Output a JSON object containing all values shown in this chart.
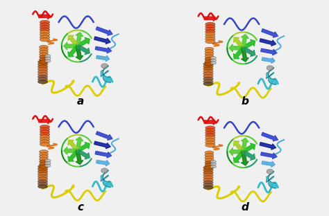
{
  "layout": "2x2",
  "labels": [
    "a",
    "b",
    "c",
    "d"
  ],
  "background_color": "#f0f0f0",
  "label_fontsize": 11,
  "label_fontstyle": "italic",
  "label_fontweight": "bold",
  "colors": {
    "red": "#dd1111",
    "dark_red": "#aa0000",
    "orange_red": "#dd4411",
    "orange": "#dd7722",
    "dark_orange": "#bb5500",
    "brown_orange": "#cc6622",
    "brown": "#885533",
    "dark_brown": "#664422",
    "yellow": "#ddcc00",
    "yellow_green": "#aacc22",
    "lime": "#55cc33",
    "green": "#22bb22",
    "dark_green": "#118811",
    "teal_green": "#229966",
    "teal": "#118877",
    "cyan": "#33bbcc",
    "light_blue": "#55aadd",
    "blue": "#3344cc",
    "dark_blue": "#112299",
    "gray": "#999999",
    "light_gray": "#bbbbbb",
    "white": "#ffffff",
    "black": "#111111"
  }
}
